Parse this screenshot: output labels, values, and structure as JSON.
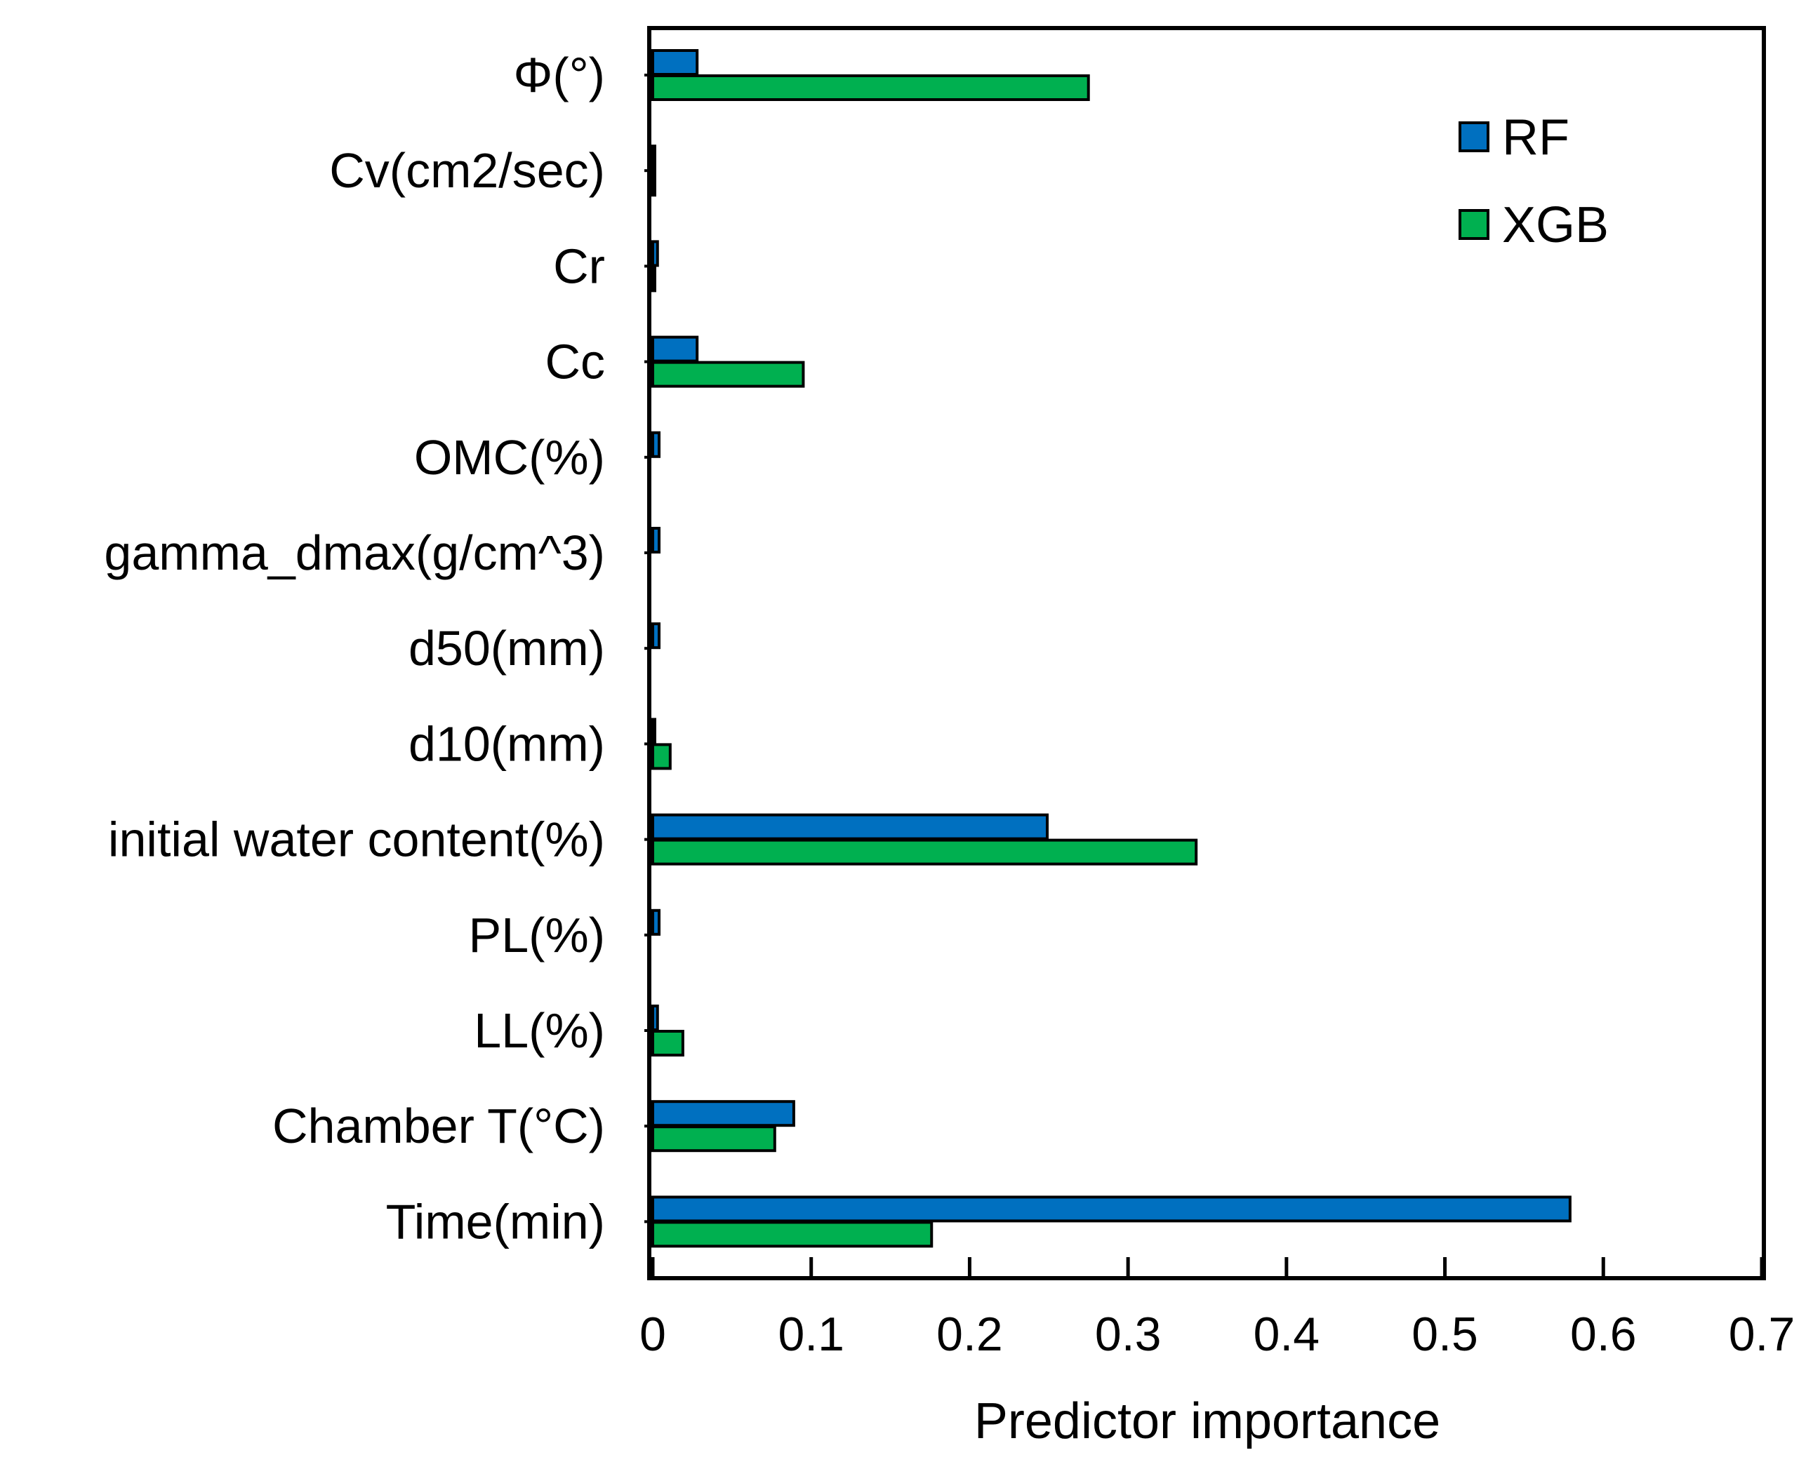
{
  "chart_data": {
    "type": "bar",
    "orientation": "horizontal",
    "title": "",
    "xlabel": "Predictor importance",
    "ylabel": "",
    "xlim": [
      0,
      0.7
    ],
    "xticks": [
      0,
      0.1,
      0.2,
      0.3,
      0.4,
      0.5,
      0.6,
      0.7
    ],
    "xtick_labels": [
      "0",
      "0.1",
      "0.2",
      "0.3",
      "0.4",
      "0.5",
      "0.6",
      "0.7"
    ],
    "grid": false,
    "legend_position": "top-right",
    "categories": [
      "Φ(°)",
      "Cv(cm2/sec)",
      "Cr",
      "Cc",
      "OMC(%)",
      "gamma_dmax(g/cm^3)",
      "d50(mm)",
      "d10(mm)",
      "initial water content(%)",
      "PL(%)",
      "LL(%)",
      "Chamber T(°C)",
      "Time(min)"
    ],
    "series": [
      {
        "name": "RF",
        "color": "#0070C0",
        "values": [
          0.028,
          0.001,
          0.003,
          0.028,
          0.004,
          0.004,
          0.004,
          0.001,
          0.249,
          0.004,
          0.003,
          0.089,
          0.579
        ]
      },
      {
        "name": "XGB",
        "color": "#00B050",
        "values": [
          0.275,
          0.001,
          0.001,
          0.095,
          0.0,
          0.0,
          0.0,
          0.011,
          0.343,
          0.0,
          0.019,
          0.077,
          0.176
        ]
      }
    ]
  }
}
